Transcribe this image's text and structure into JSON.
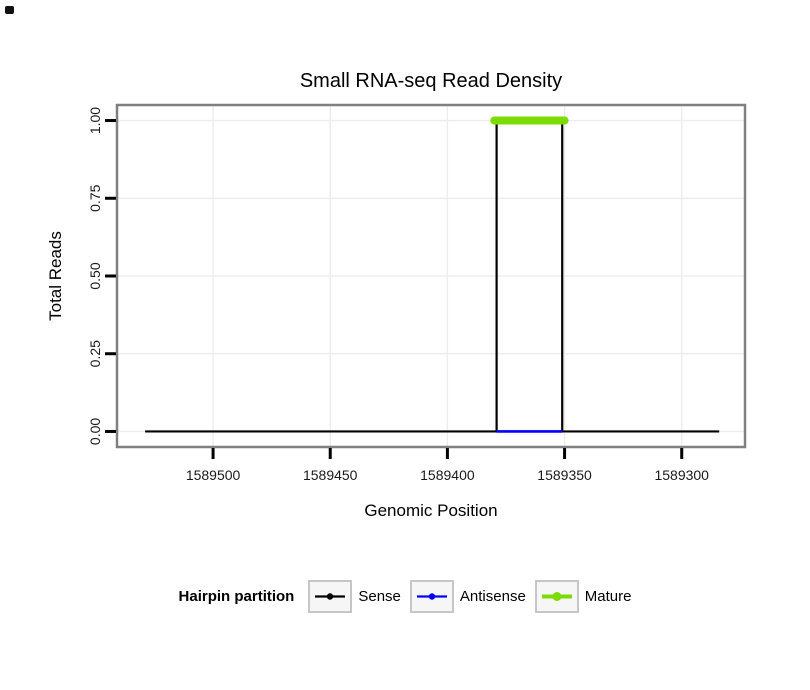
{
  "chart_data": {
    "type": "line",
    "title": "Small RNA-seq Read Density",
    "xlabel": "Genomic Position",
    "ylabel": "Total Reads",
    "x_ticks": [
      1589500,
      1589450,
      1589400,
      1589350,
      1589300
    ],
    "x_tick_labels": [
      "1589500",
      "1589450",
      "1589400",
      "1589350",
      "1589300"
    ],
    "y_ticks": [
      0,
      0.25,
      0.5,
      0.75,
      1
    ],
    "y_tick_labels": [
      "0.00",
      "0.25",
      "0.50",
      "0.75",
      "1.00"
    ],
    "x_domain": [
      1589541,
      1589273
    ],
    "y_domain": [
      -0.05,
      1.05
    ],
    "x_reversed": true,
    "grid": true,
    "panel_border_color": "#808080",
    "grid_color": "#EDEDED",
    "tick_color": "#000000",
    "series": [
      {
        "name": "Sense",
        "color": "#000000",
        "width": 2.2,
        "linecap": "butt",
        "points": [
          [
            1589529,
            0
          ],
          [
            1589379,
            0
          ],
          [
            1589379,
            1
          ],
          [
            1589351,
            1
          ],
          [
            1589351,
            0
          ],
          [
            1589284,
            0
          ]
        ]
      },
      {
        "name": "Antisense",
        "color": "#0000FF",
        "width": 2.6,
        "linecap": "butt",
        "points": [
          [
            1589379,
            0
          ],
          [
            1589351,
            0
          ]
        ]
      },
      {
        "name": "Mature",
        "color": "#7CDB00",
        "width": 8,
        "linecap": "round",
        "points": [
          [
            1589380,
            1
          ],
          [
            1589350,
            1
          ]
        ]
      }
    ],
    "legend": {
      "title": "Hairpin partition",
      "position": "bottom",
      "entries": [
        {
          "label": "Sense",
          "color": "#000000",
          "key_line_width": 2.2,
          "key_dot_radius": 3.2
        },
        {
          "label": "Antisense",
          "color": "#0000FF",
          "key_line_width": 2.2,
          "key_dot_radius": 3.2
        },
        {
          "label": "Mature",
          "color": "#7CDB00",
          "key_line_width": 4,
          "key_dot_radius": 4.5
        }
      ]
    }
  }
}
